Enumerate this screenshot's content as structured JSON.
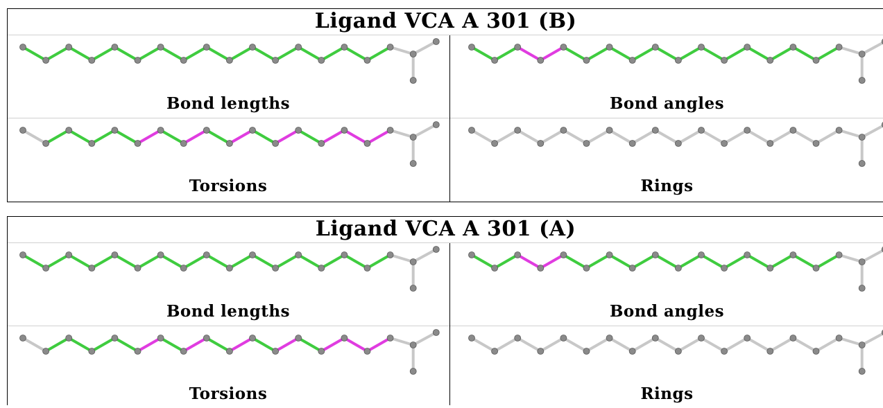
{
  "ligands": [
    {
      "title": "Ligand VCA A 301 (B)",
      "panels": [
        {
          "label": "Bond lengths",
          "highlight": {
            "green_bonds": [
              0,
              1,
              2,
              3,
              4,
              5,
              6,
              7,
              8,
              9,
              10,
              11,
              12,
              13,
              14,
              15
            ],
            "magenta_bonds": []
          }
        },
        {
          "label": "Bond angles",
          "highlight": {
            "green_bonds": [
              0,
              1,
              4,
              5,
              6,
              7,
              8,
              9,
              10,
              11,
              12,
              13,
              14,
              15
            ],
            "magenta_bonds": [
              2,
              3
            ]
          }
        },
        {
          "label": "Torsions",
          "highlight": {
            "green_bonds": [
              1,
              2,
              3,
              4,
              6,
              8,
              10,
              12
            ],
            "magenta_bonds": [
              5,
              7,
              9,
              11,
              13,
              14,
              15
            ]
          }
        },
        {
          "label": "Rings",
          "highlight": {
            "green_bonds": [],
            "magenta_bonds": []
          }
        }
      ]
    },
    {
      "title": "Ligand VCA A 301 (A)",
      "panels": [
        {
          "label": "Bond lengths",
          "highlight": {
            "green_bonds": [
              0,
              1,
              2,
              3,
              4,
              5,
              6,
              7,
              8,
              9,
              10,
              11,
              12,
              13,
              14,
              15
            ],
            "magenta_bonds": []
          }
        },
        {
          "label": "Bond angles",
          "highlight": {
            "green_bonds": [
              0,
              1,
              4,
              5,
              6,
              7,
              8,
              9,
              10,
              11,
              12,
              13,
              14,
              15
            ],
            "magenta_bonds": [
              2,
              3
            ]
          }
        },
        {
          "label": "Torsions",
          "highlight": {
            "green_bonds": [
              1,
              2,
              3,
              4,
              6,
              8,
              10,
              12
            ],
            "magenta_bonds": [
              5,
              7,
              9,
              11,
              13,
              14,
              15
            ]
          }
        },
        {
          "label": "Rings",
          "highlight": {
            "green_bonds": [],
            "magenta_bonds": []
          }
        }
      ]
    }
  ],
  "colors": {
    "green": "#3fcc3f",
    "magenta": "#e03ce0",
    "gray_bond": "#c8c8c8",
    "atom": "#8a8a8a",
    "atom_dark": "#5a5a5a"
  }
}
